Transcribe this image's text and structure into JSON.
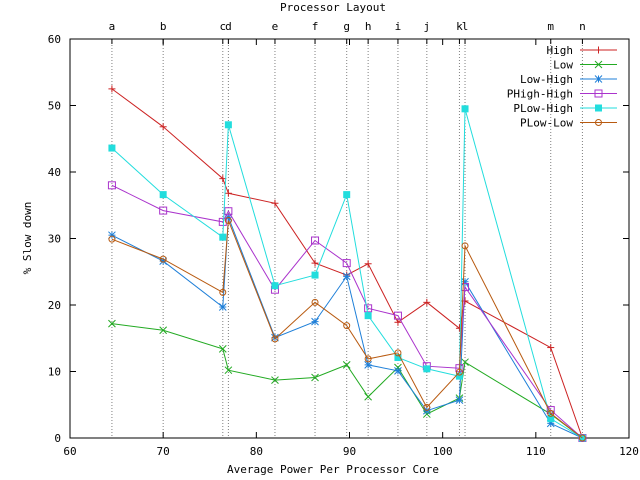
{
  "chart_data": {
    "type": "line",
    "title": "Processor Layout",
    "xlabel": "Average Power Per Processor Core",
    "ylabel": "% Slow down",
    "xlim": [
      60,
      120
    ],
    "ylim": [
      0,
      60
    ],
    "x_ticks": [
      60,
      70,
      80,
      90,
      100,
      110,
      120
    ],
    "y_ticks": [
      0,
      10,
      20,
      30,
      40,
      50,
      60
    ],
    "grid": false,
    "legend_position": "top-right",
    "layout_labels": [
      {
        "label": "a",
        "x": 64.5
      },
      {
        "label": "b",
        "x": 70.0
      },
      {
        "label": "c",
        "x": 76.4
      },
      {
        "label": "d",
        "x": 77.0
      },
      {
        "label": "e",
        "x": 82.0
      },
      {
        "label": "f",
        "x": 86.3
      },
      {
        "label": "g",
        "x": 89.7
      },
      {
        "label": "h",
        "x": 92.0
      },
      {
        "label": "i",
        "x": 95.2
      },
      {
        "label": "j",
        "x": 98.3
      },
      {
        "label": "k",
        "x": 101.8
      },
      {
        "label": "l",
        "x": 102.4
      },
      {
        "label": "m",
        "x": 111.6
      },
      {
        "label": "n",
        "x": 115.0
      }
    ],
    "series": [
      {
        "name": "High",
        "color": "#cc2222",
        "marker": "plus",
        "x": [
          64.5,
          70.0,
          76.4,
          77.0,
          82.0,
          86.3,
          89.7,
          92.0,
          95.2,
          98.3,
          101.8,
          102.4,
          111.6,
          115.0
        ],
        "y": [
          52.5,
          46.8,
          39.0,
          36.8,
          35.3,
          26.3,
          24.5,
          26.2,
          17.4,
          20.4,
          16.5,
          20.6,
          13.6,
          0.0
        ]
      },
      {
        "name": "Low",
        "color": "#22aa22",
        "marker": "x",
        "x": [
          64.5,
          70.0,
          76.4,
          77.0,
          82.0,
          86.3,
          89.7,
          92.0,
          95.2,
          98.3,
          101.8,
          102.4,
          111.6,
          115.0
        ],
        "y": [
          17.2,
          16.2,
          13.4,
          10.2,
          8.7,
          9.1,
          11.0,
          6.2,
          10.6,
          3.6,
          6.0,
          11.4,
          3.6,
          0.0
        ]
      },
      {
        "name": "Low-High",
        "color": "#1e7fd8",
        "marker": "star",
        "x": [
          64.5,
          70.0,
          76.4,
          77.0,
          82.0,
          86.3,
          89.7,
          92.0,
          95.2,
          98.3,
          101.8,
          102.4,
          111.6,
          115.0
        ],
        "y": [
          30.5,
          26.6,
          19.7,
          33.2,
          15.1,
          17.5,
          24.3,
          11.0,
          10.1,
          4.1,
          5.7,
          23.5,
          2.2,
          0.0
        ]
      },
      {
        "name": "PHigh-High",
        "color": "#aa33cc",
        "marker": "square-open",
        "x": [
          64.5,
          70.0,
          76.4,
          77.0,
          82.0,
          86.3,
          89.7,
          92.0,
          95.2,
          98.3,
          101.8,
          102.4,
          111.6,
          115.0
        ],
        "y": [
          38.0,
          34.2,
          32.5,
          34.1,
          22.3,
          29.7,
          26.3,
          19.5,
          18.4,
          10.8,
          10.5,
          22.7,
          4.2,
          0.0
        ]
      },
      {
        "name": "PLow-High",
        "color": "#22dddd",
        "marker": "square-filled",
        "x": [
          64.5,
          70.0,
          76.4,
          77.0,
          82.0,
          86.3,
          89.7,
          92.0,
          95.2,
          98.3,
          101.8,
          102.4,
          111.6,
          115.0
        ],
        "y": [
          43.6,
          36.6,
          30.2,
          47.1,
          22.9,
          24.5,
          36.6,
          18.4,
          12.1,
          10.4,
          9.3,
          49.5,
          2.9,
          0.0
        ]
      },
      {
        "name": "PLow-Low",
        "color": "#b85a10",
        "marker": "circle",
        "x": [
          64.5,
          70.0,
          76.4,
          77.0,
          82.0,
          86.3,
          89.7,
          92.0,
          95.2,
          98.3,
          101.8,
          102.4,
          111.6,
          115.0
        ],
        "y": [
          29.9,
          26.9,
          21.9,
          32.7,
          14.9,
          20.4,
          16.9,
          11.9,
          12.8,
          4.6,
          9.9,
          28.9,
          3.7,
          0.0
        ]
      }
    ]
  }
}
